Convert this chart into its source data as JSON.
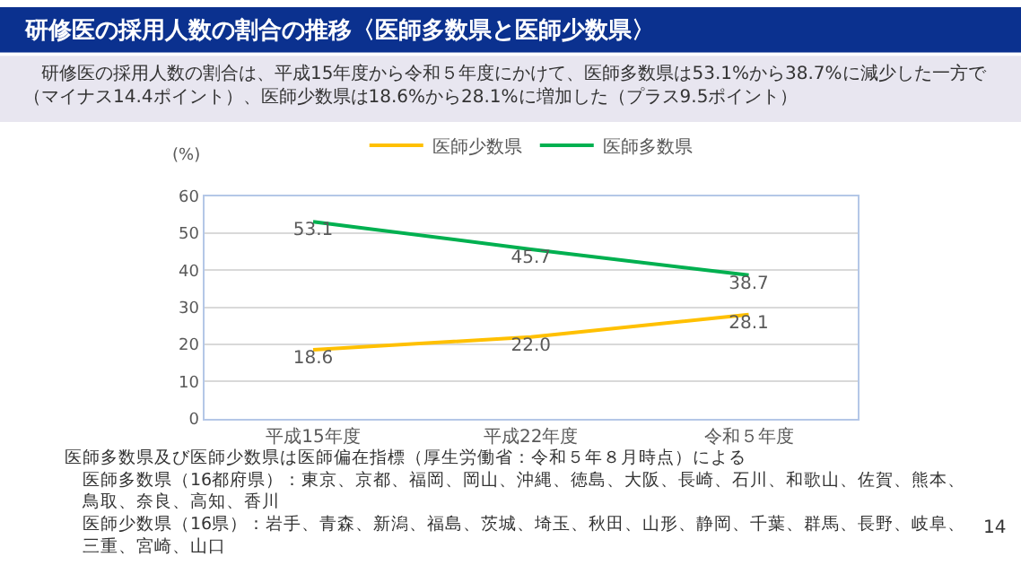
{
  "chart_data": {
    "type": "line",
    "title": "研修医の採用人数の割合の推移〈医師多数県と医師少数県〉",
    "subtitle": "研修医の採用人数の割合は、平成15年度から令和５年度にかけて、医師多数県は53.1%から38.7%に減少した一方で（マイナス14.4ポイント）、医師少数県は18.6%から28.1%に増加した（プラス9.5ポイント）",
    "ylabel": "(%)",
    "categories": [
      "平成15年度",
      "平成22年度",
      "令和５年度"
    ],
    "series": [
      {
        "name": "医師少数県",
        "color": "#ffc000",
        "values": [
          18.6,
          22.0,
          28.1
        ],
        "value_labels": [
          "18.6",
          "22.0",
          "28.1"
        ]
      },
      {
        "name": "医師多数県",
        "color": "#00b050",
        "values": [
          53.1,
          45.7,
          38.7
        ],
        "value_labels": [
          "53.1",
          "45.7",
          "38.7"
        ]
      }
    ],
    "ylim": [
      0,
      60
    ],
    "yticks": [
      0,
      10,
      20,
      30,
      40,
      50,
      60
    ],
    "grid": "y",
    "legend": "top",
    "marker": "none",
    "line_style": "solid",
    "annotations": [
      "医師多数県及び医師少数県は医師偏在指標（厚生労働省：令和５年８月時点）による",
      "医師多数県（16都府県）：東京、京都、福岡、岡山、沖縄、徳島、大阪、長崎、石川、和歌山、佐賀、熊本、鳥取、奈良、高知、香川",
      "医師少数県（16県）：岩手、青森、新潟、福島、茨城、埼玉、秋田、山形、静岡、千葉、群馬、長野、岐阜、三重、宮崎、山口",
      "14"
    ]
  }
}
